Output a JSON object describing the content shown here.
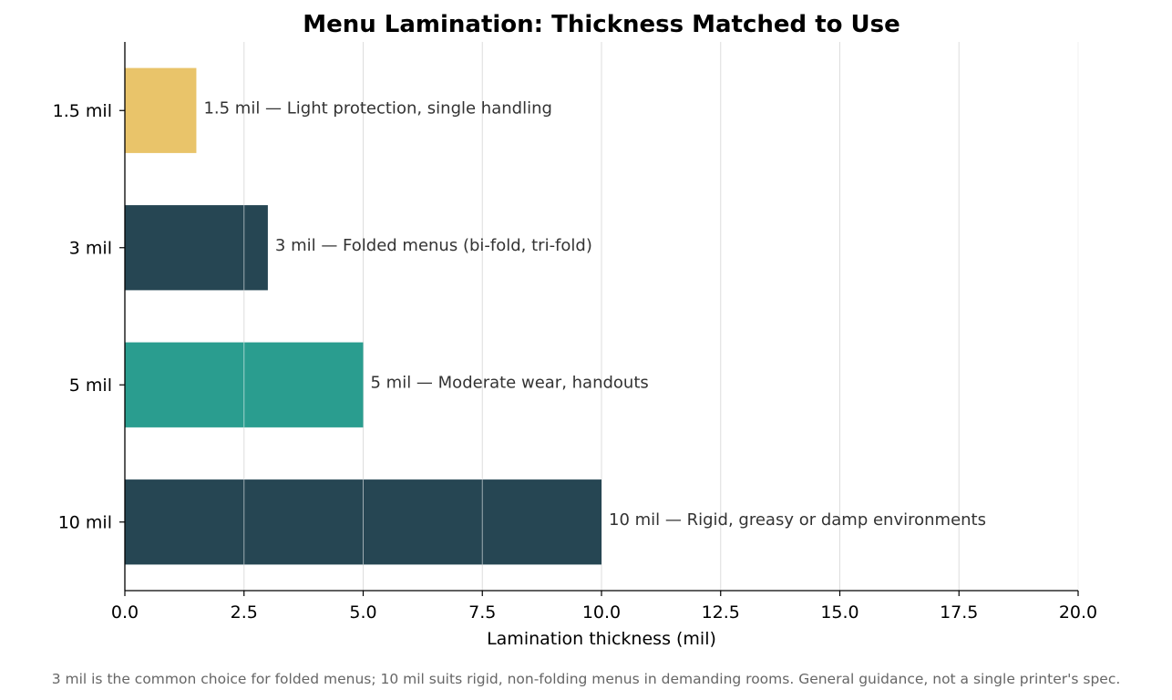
{
  "chart_data": {
    "type": "bar",
    "orientation": "horizontal",
    "title": "Menu Lamination: Thickness Matched to Use",
    "xlabel": "Lamination thickness (mil)",
    "ylabel": "",
    "xlim": [
      0,
      20
    ],
    "x_ticks": [
      "0.0",
      "2.5",
      "5.0",
      "7.5",
      "10.0",
      "12.5",
      "15.0",
      "17.5",
      "20.0"
    ],
    "grid": "vertical",
    "categories": [
      "1.5 mil",
      "3 mil",
      "5 mil",
      "10 mil"
    ],
    "values": [
      1.5,
      3,
      5,
      10
    ],
    "colors": [
      "#e9c46a",
      "#264653",
      "#2a9d8f",
      "#264653"
    ],
    "bar_labels": [
      "1.5 mil  —  Light protection, single handling",
      "3 mil  —  Folded menus (bi-fold, tri-fold)",
      "5 mil  —  Moderate wear, handouts",
      "10 mil  —  Rigid, greasy or damp environments"
    ],
    "footnote": "3 mil is the common choice for folded menus; 10 mil suits rigid, non-folding menus in demanding rooms. General guidance, not a single printer's spec."
  }
}
